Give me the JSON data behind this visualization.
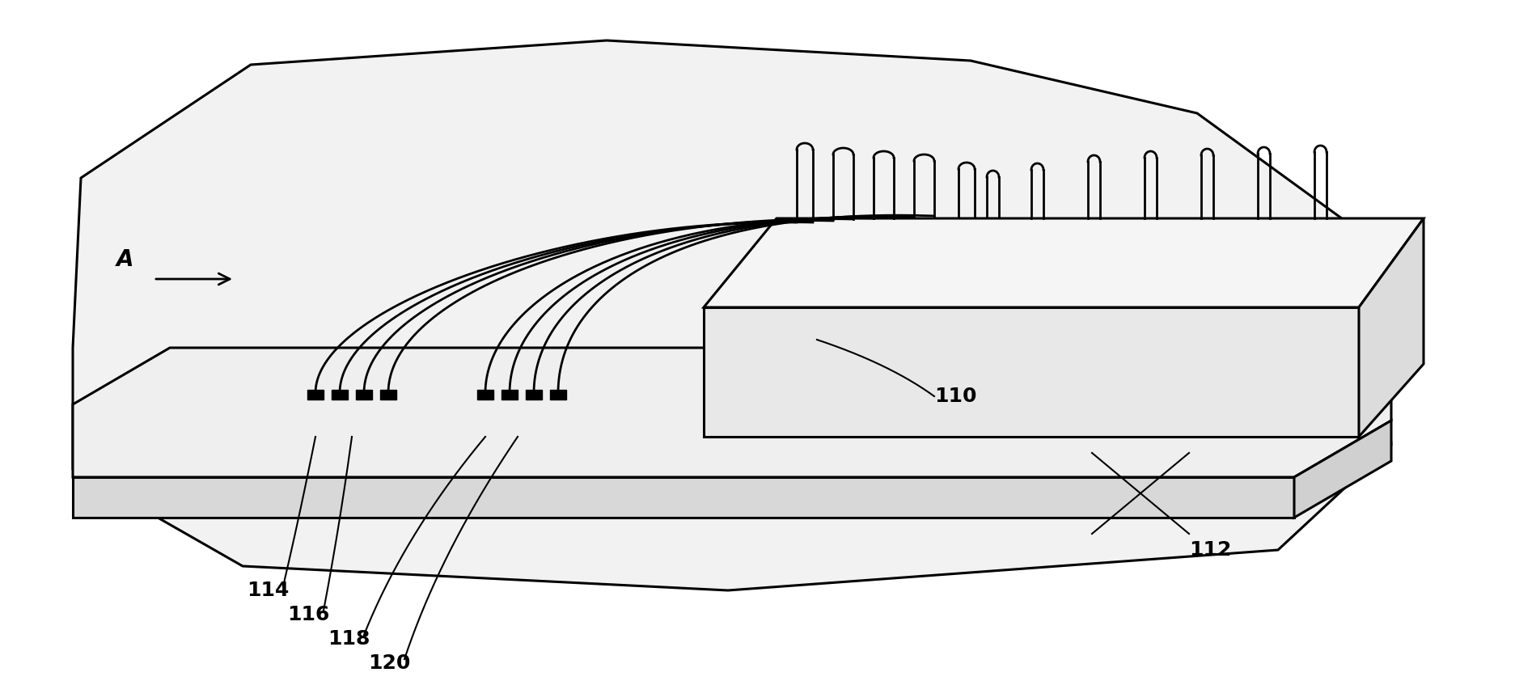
{
  "bg_color": "#ffffff",
  "line_color": "#000000",
  "lw_main": 2.2,
  "lw_thin": 1.5,
  "lw_wire": 2.0,
  "fig_width": 18.74,
  "fig_height": 8.47,
  "label_fontsize": 18,
  "arrow_label_fontsize": 20
}
